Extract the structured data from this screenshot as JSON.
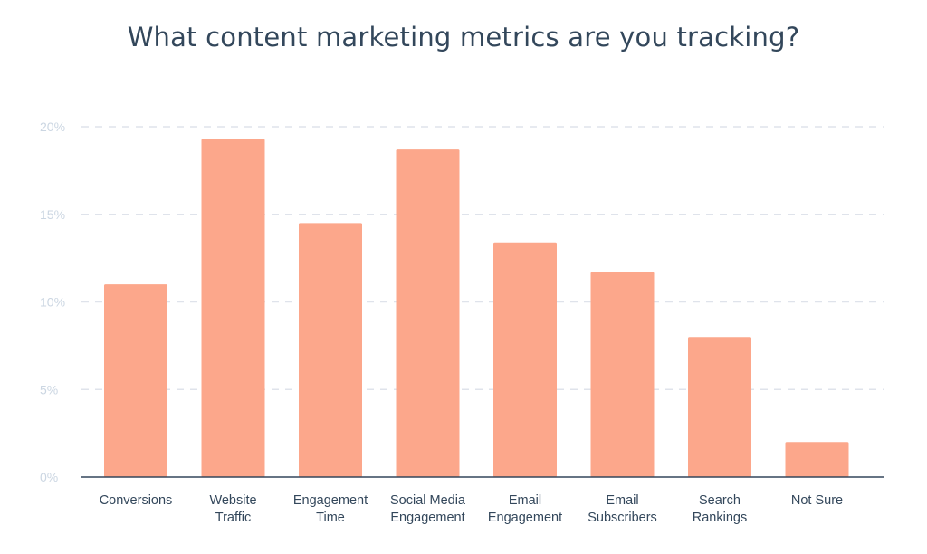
{
  "chart_data": {
    "type": "bar",
    "title": "What content marketing metrics are you tracking?",
    "xlabel": "",
    "ylabel": "",
    "categories": [
      [
        "Conversions"
      ],
      [
        "Website",
        "Traffic"
      ],
      [
        "Engagement",
        "Time"
      ],
      [
        "Social Media",
        "Engagement"
      ],
      [
        "Email",
        "Engagement"
      ],
      [
        "Email",
        "Subscribers"
      ],
      [
        "Search",
        "Rankings"
      ],
      [
        "Not Sure"
      ]
    ],
    "values": [
      11,
      19.3,
      14.5,
      18.7,
      13.4,
      11.7,
      8,
      2
    ],
    "ylim": [
      0,
      20
    ],
    "yticks": [
      0,
      5,
      10,
      15,
      20
    ],
    "ytick_labels": [
      "0%",
      "5%",
      "10%",
      "15%",
      "20%"
    ],
    "grid": true,
    "bar_color": "#fca78b",
    "grid_color": "#dfe3eb",
    "axis_color": "#33475b",
    "ytick_color": "#cbd6e2",
    "text_color": "#33475b"
  }
}
